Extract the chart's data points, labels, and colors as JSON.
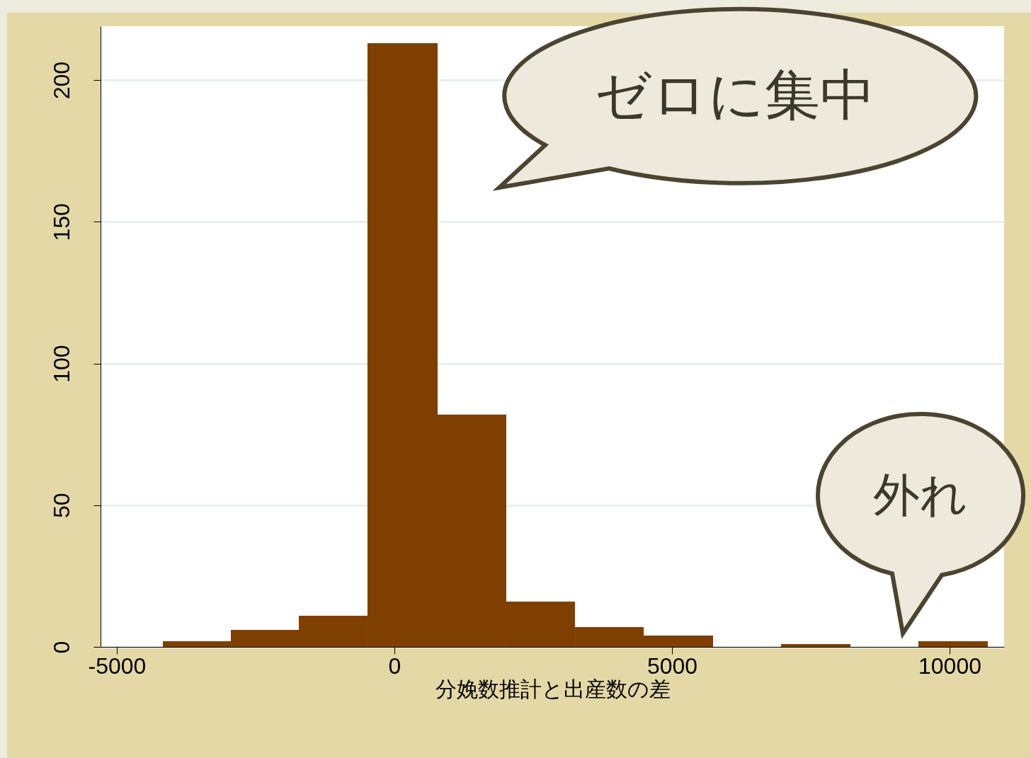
{
  "chart_data": {
    "type": "histogram",
    "xlabel": "分娩数推計と出産数の差",
    "bins": [
      -4171,
      -2946,
      -1722,
      -485,
      778,
      2015,
      3253,
      4490,
      5740,
      6964,
      8214,
      9439,
      10689
    ],
    "values": [
      2,
      6,
      11,
      213,
      82,
      16,
      7,
      4,
      0,
      1,
      0,
      2
    ],
    "color": "#7f3f00",
    "xlim": [
      -5293,
      10982
    ],
    "ylim": [
      0,
      219
    ],
    "xticks": [
      -5000,
      0,
      5000,
      10000
    ],
    "yticks": [
      0,
      50,
      100,
      150,
      200
    ],
    "grid": "y",
    "annotations": [
      "ゼロに集中",
      "外れ"
    ]
  }
}
